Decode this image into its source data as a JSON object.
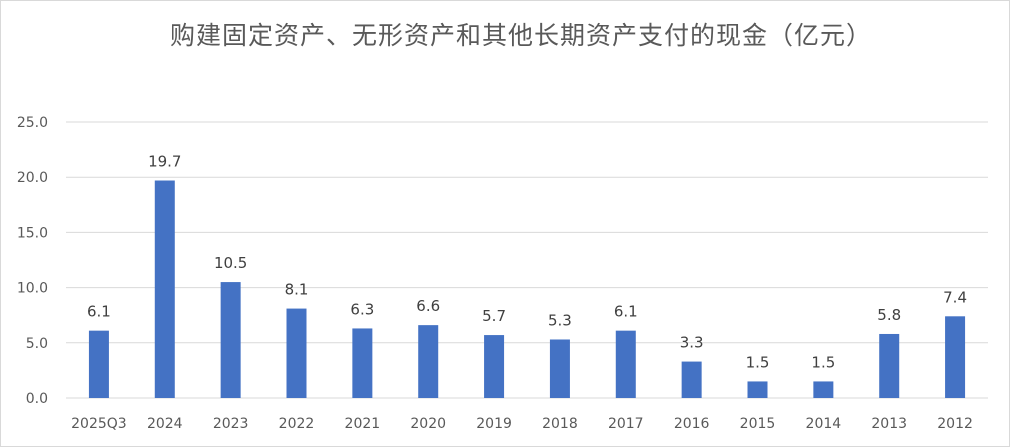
{
  "chart_data": {
    "type": "bar",
    "title": "购建固定资产、无形资产和其他长期资产支付的现金（亿元）",
    "categories": [
      "2025Q3",
      "2024",
      "2023",
      "2022",
      "2021",
      "2020",
      "2019",
      "2018",
      "2017",
      "2016",
      "2015",
      "2014",
      "2013",
      "2012"
    ],
    "values": [
      6.1,
      19.7,
      10.5,
      8.1,
      6.3,
      6.6,
      5.7,
      5.3,
      6.1,
      3.3,
      1.5,
      1.5,
      5.8,
      7.4
    ],
    "value_labels": [
      "6.1",
      "19.7",
      "10.5",
      "8.1",
      "6.3",
      "6.6",
      "5.7",
      "5.3",
      "6.1",
      "3.3",
      "1.5",
      "1.5",
      "5.8",
      "7.4"
    ],
    "ylim": [
      0,
      25
    ],
    "yticks": [
      "0.0",
      "5.0",
      "10.0",
      "15.0",
      "20.0",
      "25.0"
    ],
    "ytick_values": [
      0,
      5,
      10,
      15,
      20,
      25
    ],
    "grid": true,
    "legend": "none",
    "bar_color": "#4472c4",
    "grid_color": "#d9d9d9"
  }
}
